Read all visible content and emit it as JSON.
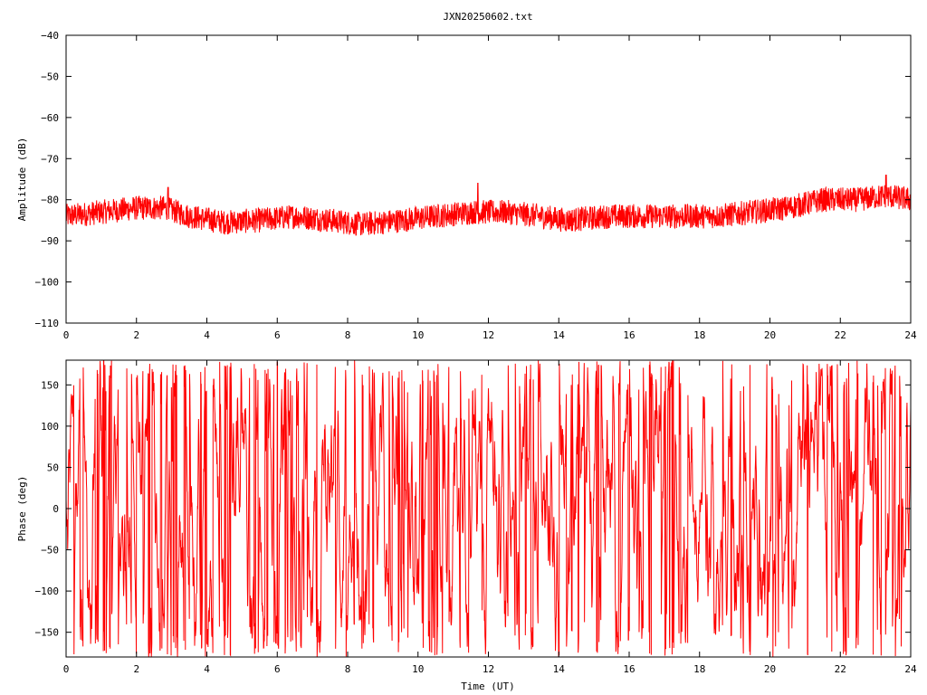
{
  "title": "JXN20250602.txt",
  "colors": {
    "series": "#ff0000",
    "axis": "#000000",
    "background": "#ffffff"
  },
  "chart_data": [
    {
      "type": "line",
      "ylabel": "Amplitude (dB)",
      "xlim": [
        0,
        24
      ],
      "ylim": [
        -110,
        -40
      ],
      "x_ticks": [
        0,
        2,
        4,
        6,
        8,
        10,
        12,
        14,
        16,
        18,
        20,
        22,
        24
      ],
      "y_ticks": [
        -110,
        -100,
        -90,
        -80,
        -70,
        -60,
        -50,
        -40
      ],
      "grid": false,
      "series": [
        {
          "color": "#ff0000",
          "mean_trend": {
            "x": [
              0,
              1,
              2,
              2.8,
              3.5,
              4.5,
              5.5,
              6.5,
              7.5,
              8.4,
              9.5,
              10.5,
              11.5,
              12.5,
              13.5,
              14.2,
              15.5,
              16.5,
              17.5,
              18.5,
              19.5,
              20.5,
              21.5,
              22.5,
              23.3,
              24
            ],
            "y": [
              -84,
              -83,
              -82,
              -82,
              -84,
              -85.5,
              -85,
              -84,
              -85,
              -86,
              -85,
              -84,
              -83,
              -83,
              -84,
              -85,
              -84,
              -84,
              -84,
              -84,
              -83,
              -82,
              -80,
              -80,
              -79,
              -80
            ]
          },
          "band_halfwidth": 3,
          "peaks": {
            "x": [
              2.9,
              11.7,
              23.3
            ],
            "y": [
              -77,
              -76,
              -74
            ]
          }
        }
      ]
    },
    {
      "type": "line",
      "xlabel": "Time (UT)",
      "ylabel": "Phase (deg)",
      "xlim": [
        0,
        24
      ],
      "ylim": [
        -180,
        180
      ],
      "x_ticks": [
        0,
        2,
        4,
        6,
        8,
        10,
        12,
        14,
        16,
        18,
        20,
        22,
        24
      ],
      "y_ticks": [
        -150,
        -100,
        -50,
        0,
        50,
        100,
        150
      ],
      "grid": false,
      "series": [
        {
          "color": "#ff0000",
          "range": [
            -180,
            180
          ],
          "wraps_at": 180
        }
      ]
    }
  ]
}
